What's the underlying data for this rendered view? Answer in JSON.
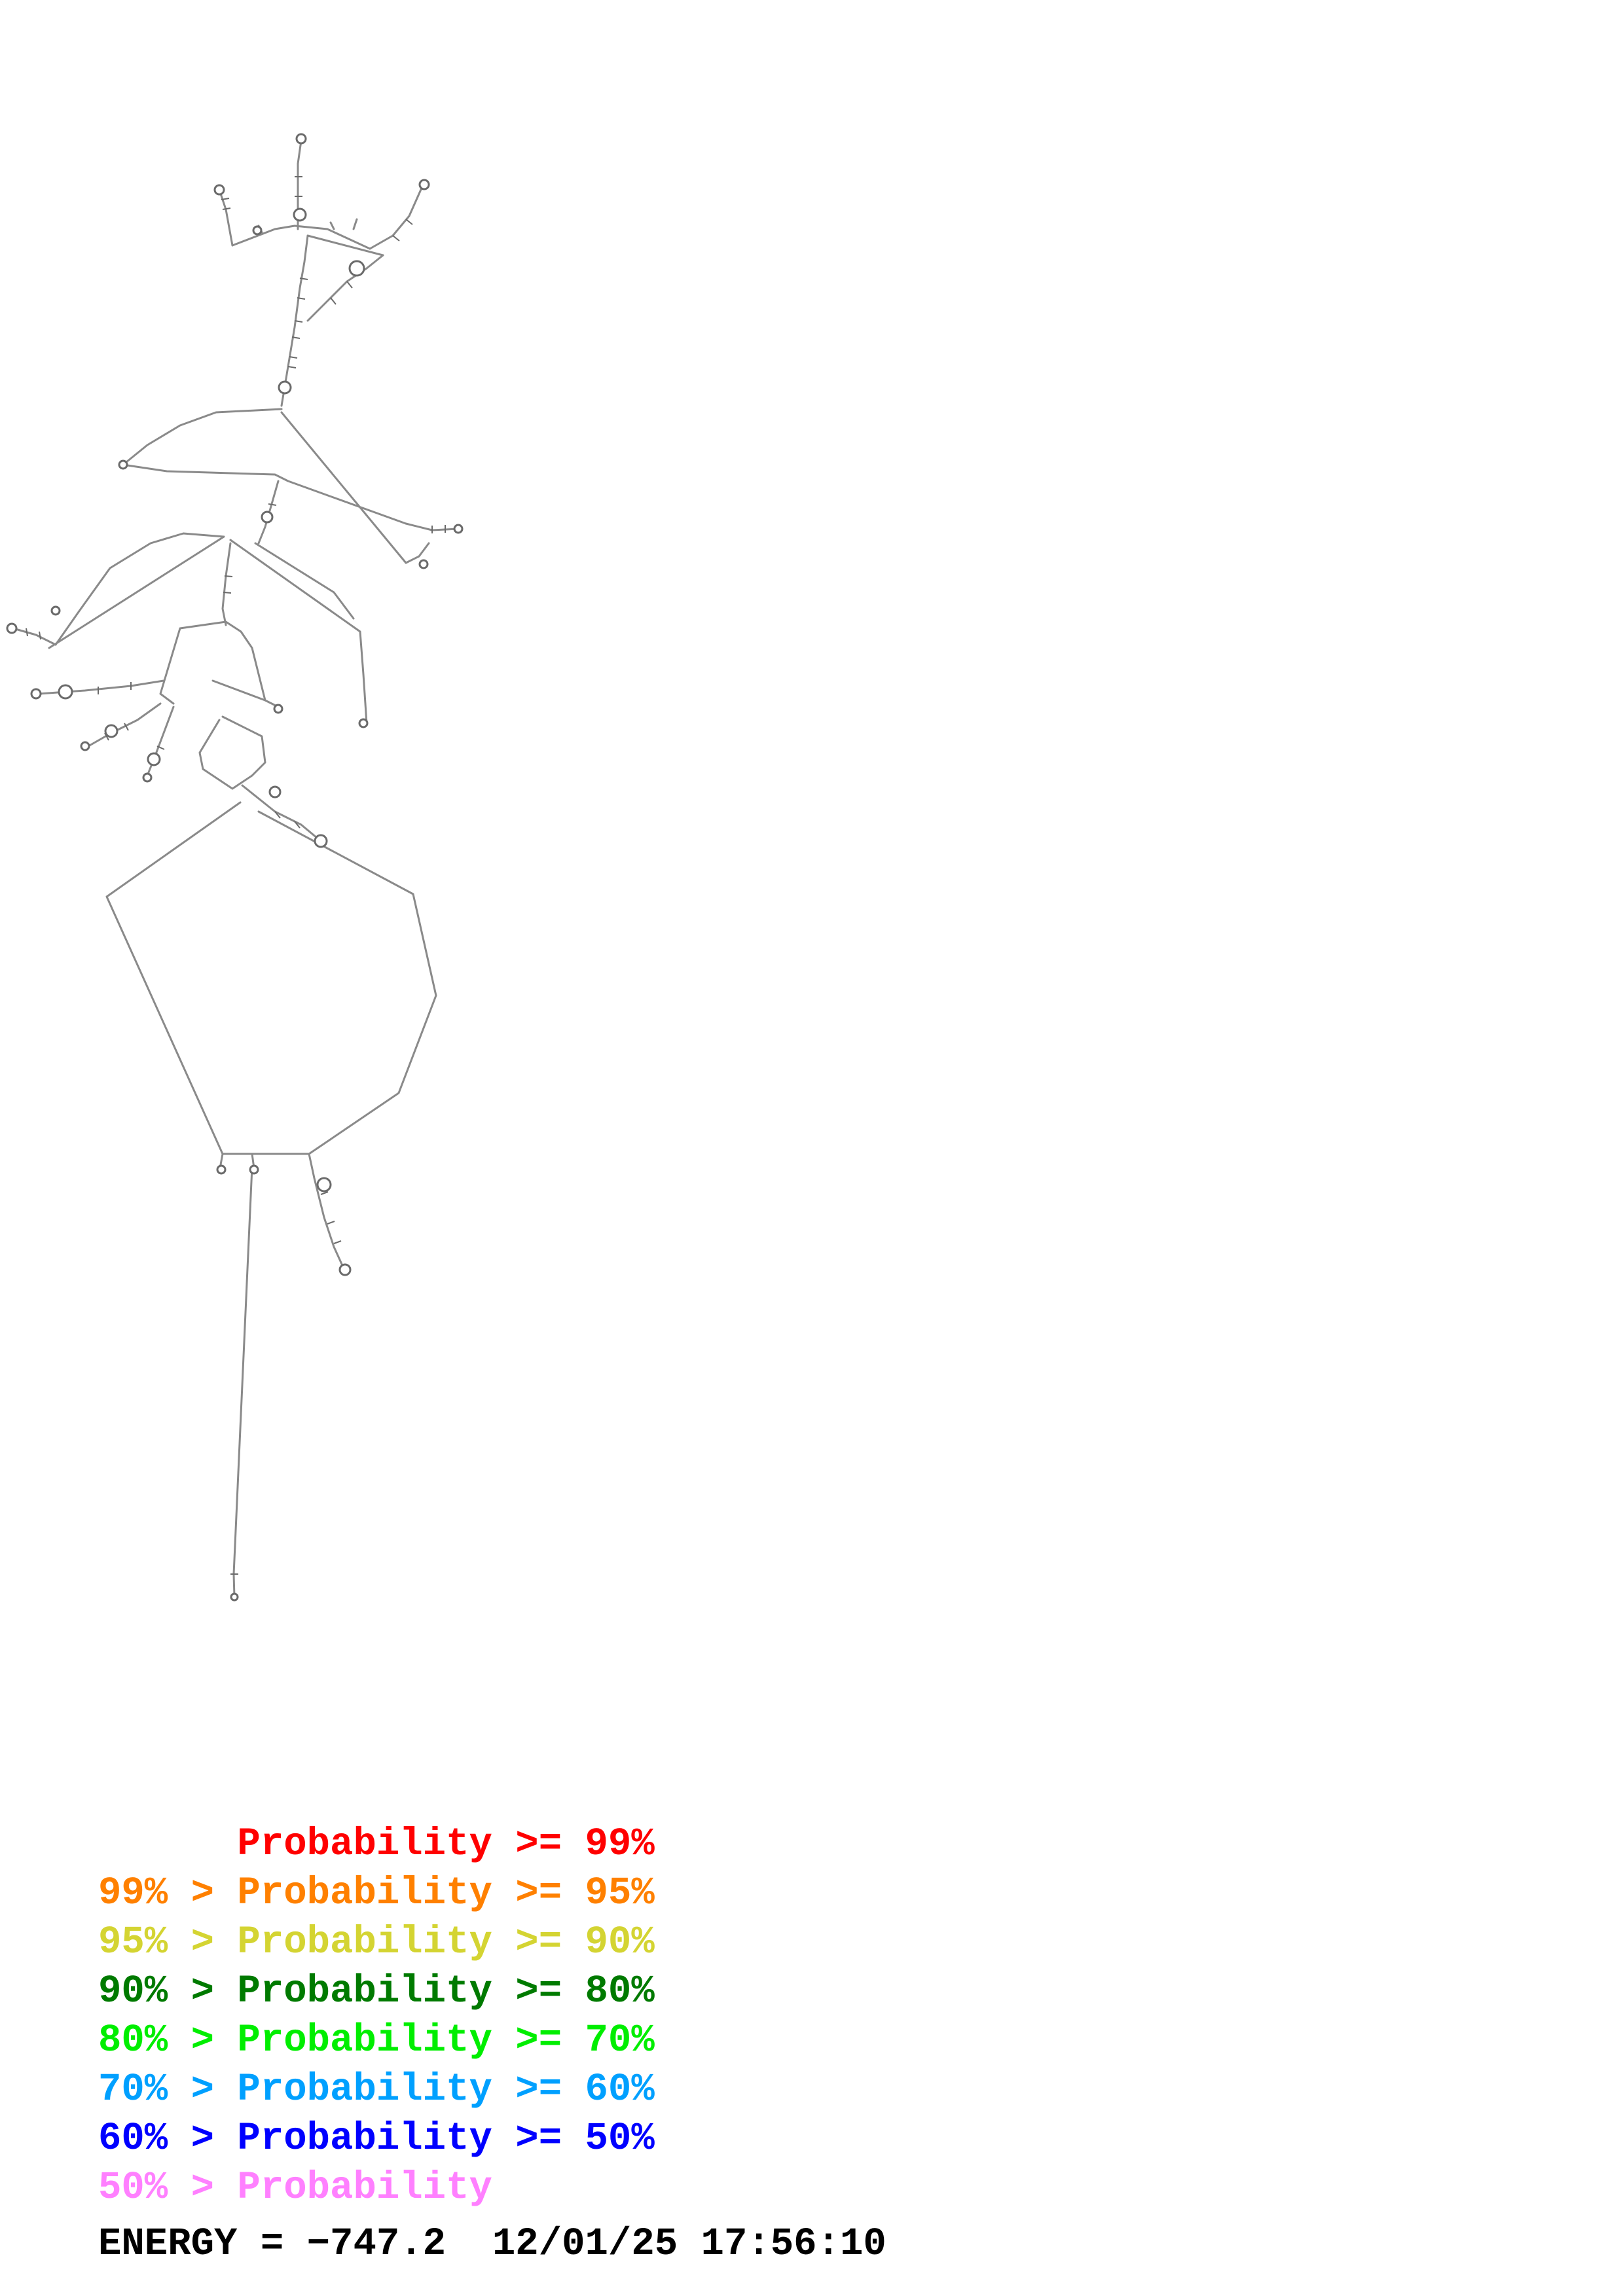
{
  "legend": {
    "items": [
      {
        "prefix": "",
        "label": "Probability",
        "threshold": ">= 99%",
        "color": "#ff0000"
      },
      {
        "prefix": "99% > ",
        "label": "Probability",
        "threshold": ">= 95%",
        "color": "#ff8000"
      },
      {
        "prefix": "95% > ",
        "label": "Probability",
        "threshold": ">= 90%",
        "color": "#d4d432"
      },
      {
        "prefix": "90% > ",
        "label": "Probability",
        "threshold": ">= 80%",
        "color": "#007a00"
      },
      {
        "prefix": "80% > ",
        "label": "Probability",
        "threshold": ">= 70%",
        "color": "#00ee00"
      },
      {
        "prefix": "70% > ",
        "label": "Probability",
        "threshold": ">= 60%",
        "color": "#00a0ff"
      },
      {
        "prefix": "60% > ",
        "label": "Probability",
        "threshold": ">= 50%",
        "color": "#0000ff"
      },
      {
        "prefix": "50% > ",
        "label": "Probability",
        "threshold": "",
        "color": "#ff80ff"
      }
    ]
  },
  "footer": {
    "energy_label": "ENERGY = ",
    "energy_value": "−747.2",
    "datetime": "12/01/25 17:56:10"
  },
  "diagram": {
    "line_color": "#8a8a8a",
    "base_color": "#6a6a6a"
  }
}
